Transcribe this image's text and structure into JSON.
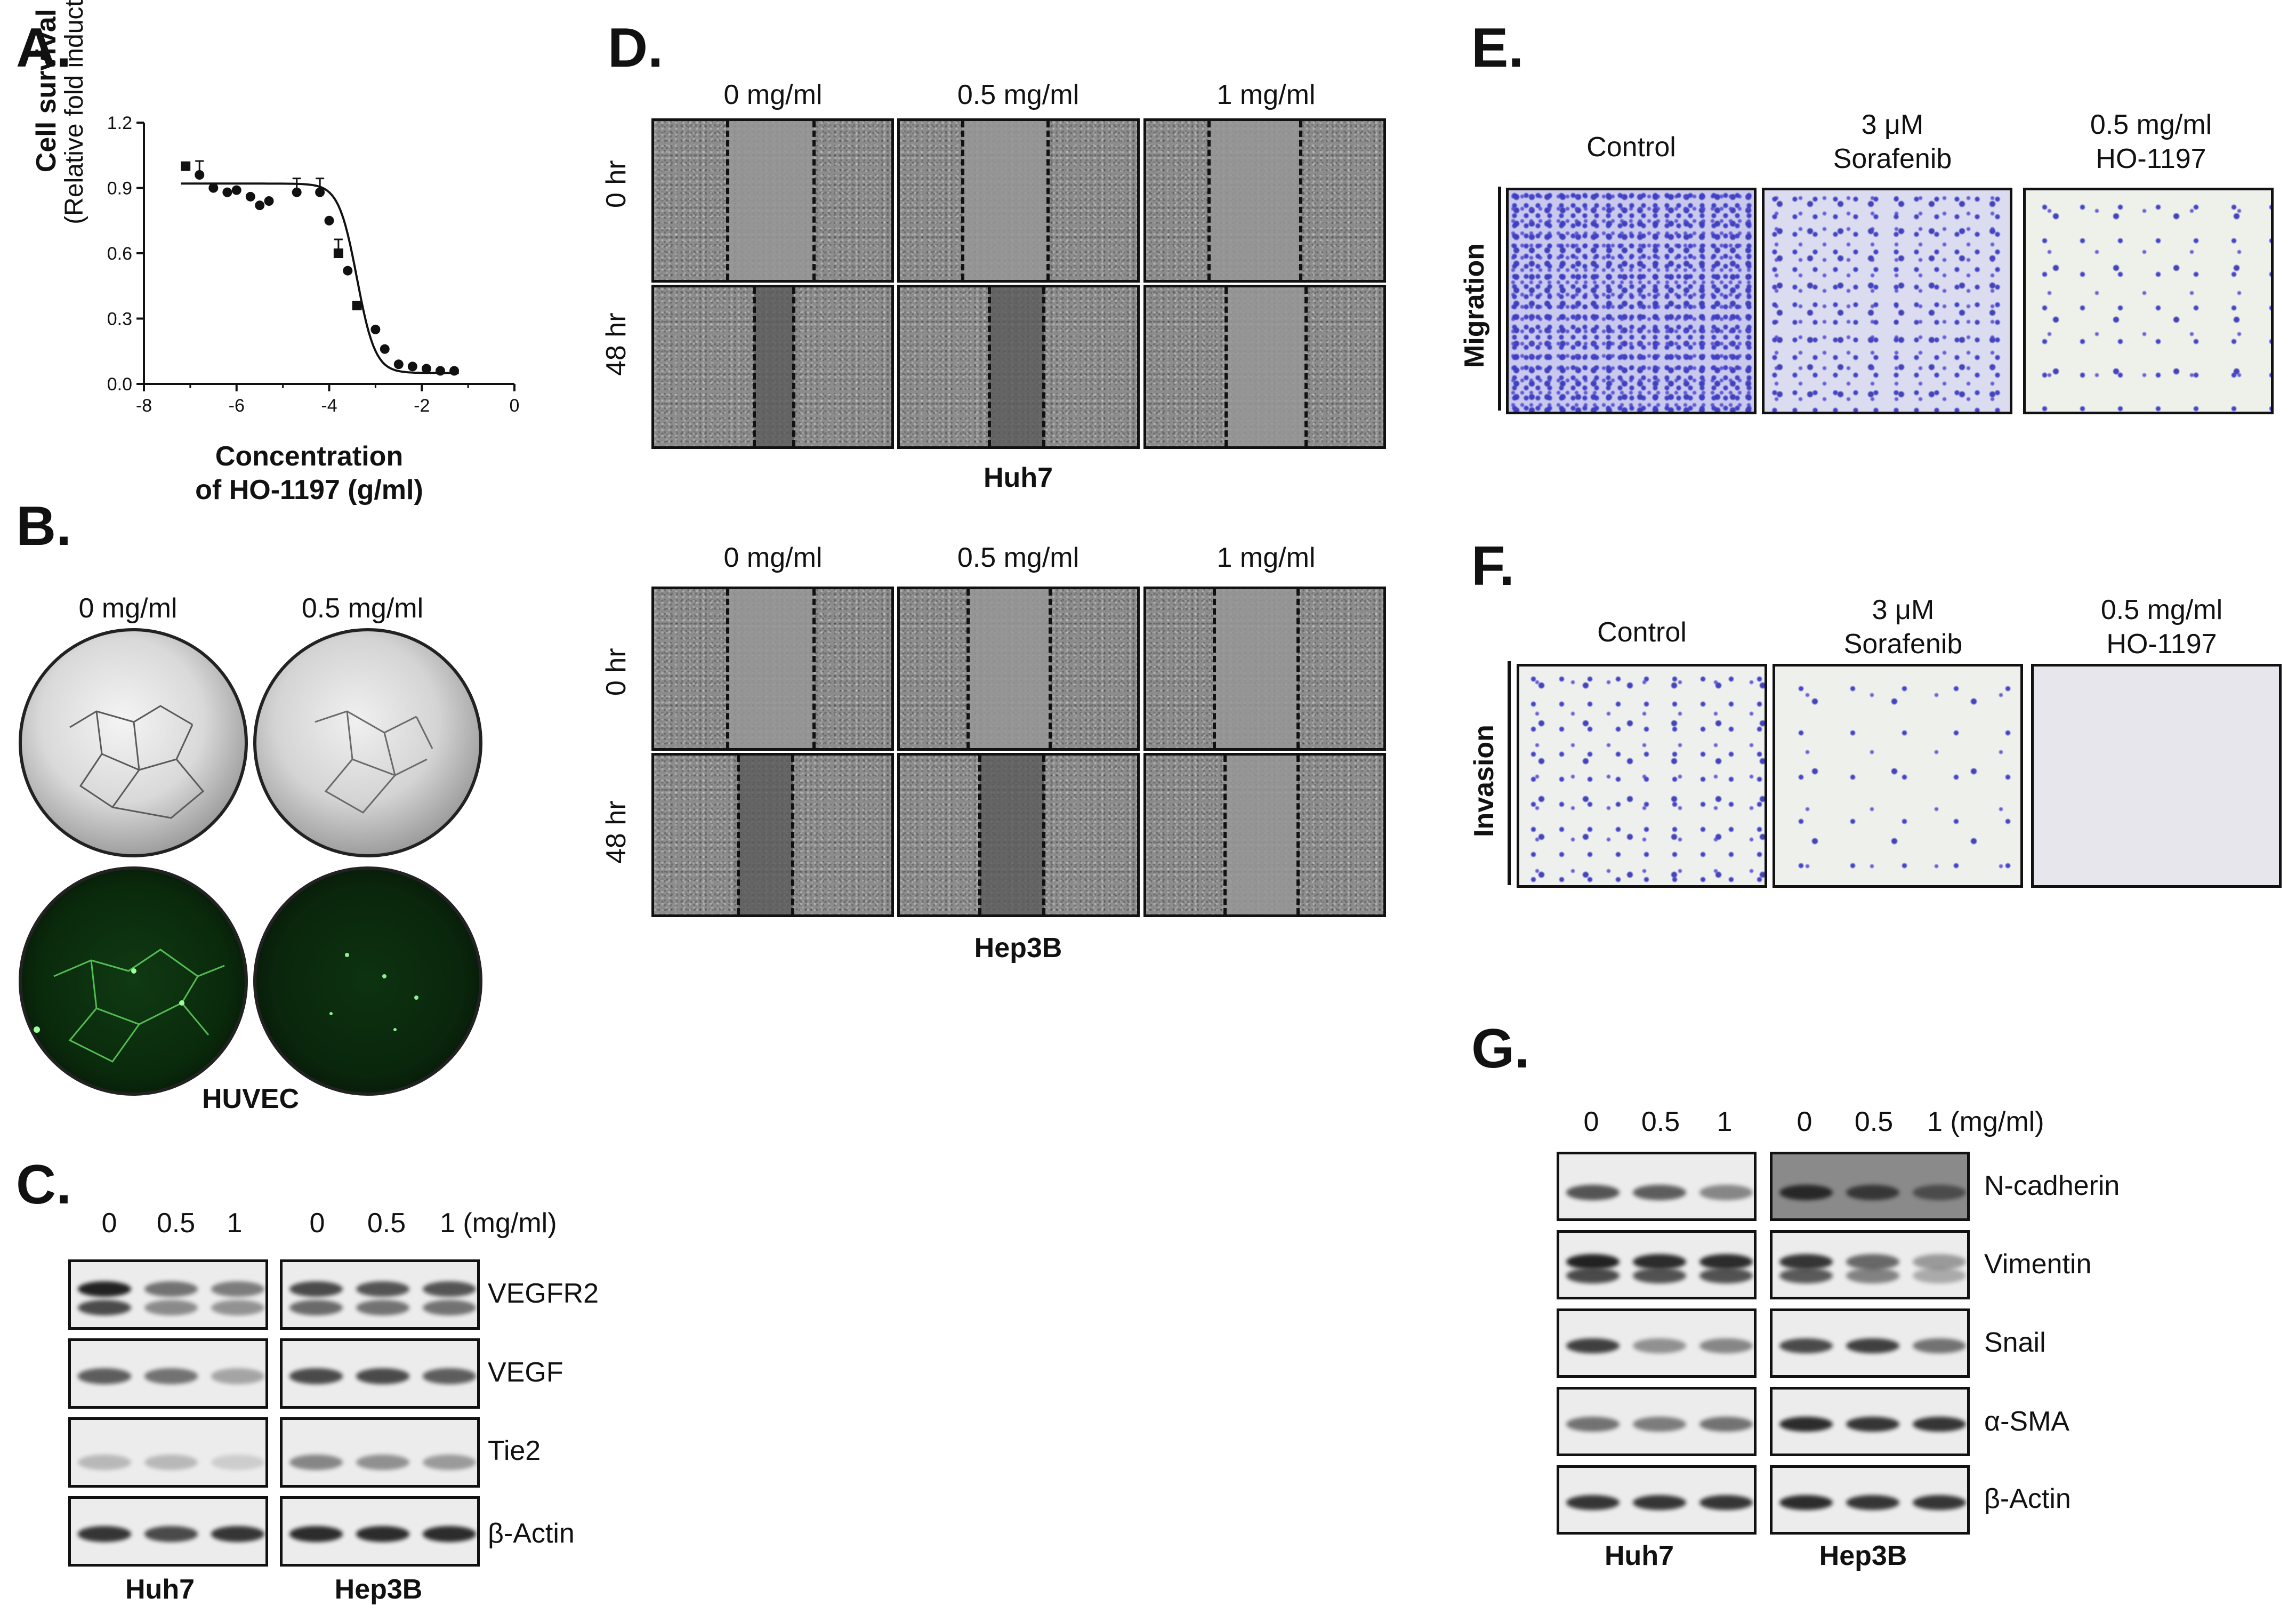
{
  "panels": {
    "A": "A.",
    "B": "B.",
    "C": "C.",
    "D": "D.",
    "E": "E.",
    "F": "F.",
    "G": "G."
  },
  "panelA": {
    "ylabel_bold": "Cell survival",
    "ylabel_sub": "(Relative fold induction)",
    "xlabel_line1": "Concentration",
    "xlabel_line2": "of HO-1197 (g/ml)",
    "xticks": [
      "-8",
      "-6",
      "-4",
      "-2",
      "0"
    ],
    "yticks": [
      "0.0",
      "0.3",
      "0.6",
      "0.9",
      "1.2"
    ]
  },
  "chart_data": {
    "type": "scatter",
    "title": "",
    "xlabel": "Concentration of HO-1197 (g/ml)",
    "ylabel": "Cell survival (Relative fold induction)",
    "xlim": [
      -8,
      0
    ],
    "ylim": [
      0,
      1.2
    ],
    "x": [
      -7.1,
      -6.8,
      -6.5,
      -6.2,
      -6.0,
      -5.7,
      -5.5,
      -5.3,
      -4.7,
      -4.2,
      -4.0,
      -3.8,
      -3.6,
      -3.4,
      -3.0,
      -2.8,
      -2.5,
      -2.2,
      -1.9,
      -1.6,
      -1.3
    ],
    "values": [
      1.0,
      0.96,
      0.9,
      0.88,
      0.89,
      0.86,
      0.82,
      0.84,
      0.88,
      0.88,
      0.75,
      0.6,
      0.52,
      0.36,
      0.25,
      0.16,
      0.09,
      0.08,
      0.07,
      0.06,
      0.06
    ],
    "fit": "sigmoidal"
  },
  "panelB": {
    "col1": "0 mg/ml",
    "col2": "0.5 mg/ml",
    "caption": "HUVEC"
  },
  "panelC": {
    "conc_huh7": [
      "0",
      "0.5",
      "1"
    ],
    "conc_hep3b": [
      "0",
      "0.5",
      "1 (mg/ml)"
    ],
    "proteins": [
      "VEGFR2",
      "VEGF",
      "Tie2",
      "β-Actin"
    ],
    "cell_huh7": "Huh7",
    "cell_hep3b": "Hep3B"
  },
  "panelD": {
    "cols": [
      "0 mg/ml",
      "0.5 mg/ml",
      "1 mg/ml"
    ],
    "rows": [
      "0 hr",
      "48 hr"
    ],
    "cell_top": "Huh7",
    "cell_bottom": "Hep3B"
  },
  "panelE": {
    "row_label": "Migration",
    "cols": [
      {
        "line1": "Control",
        "line2": ""
      },
      {
        "line1": "3 μM",
        "line2": "Sorafenib"
      },
      {
        "line1": "0.5 mg/ml",
        "line2": "HO-1197"
      }
    ]
  },
  "panelF": {
    "row_label": "Invasion",
    "cols": [
      {
        "line1": "Control",
        "line2": ""
      },
      {
        "line1": "3 μM",
        "line2": "Sorafenib"
      },
      {
        "line1": "0.5 mg/ml",
        "line2": "HO-1197"
      }
    ]
  },
  "panelG": {
    "conc_huh7": [
      "0",
      "0.5",
      "1"
    ],
    "conc_hep3b": [
      "0",
      "0.5",
      "1 (mg/ml)"
    ],
    "proteins": [
      "N-cadherin",
      "Vimentin",
      "Snail",
      "α-SMA",
      "β-Actin"
    ],
    "cell_huh7": "Huh7",
    "cell_hep3b": "Hep3B"
  }
}
